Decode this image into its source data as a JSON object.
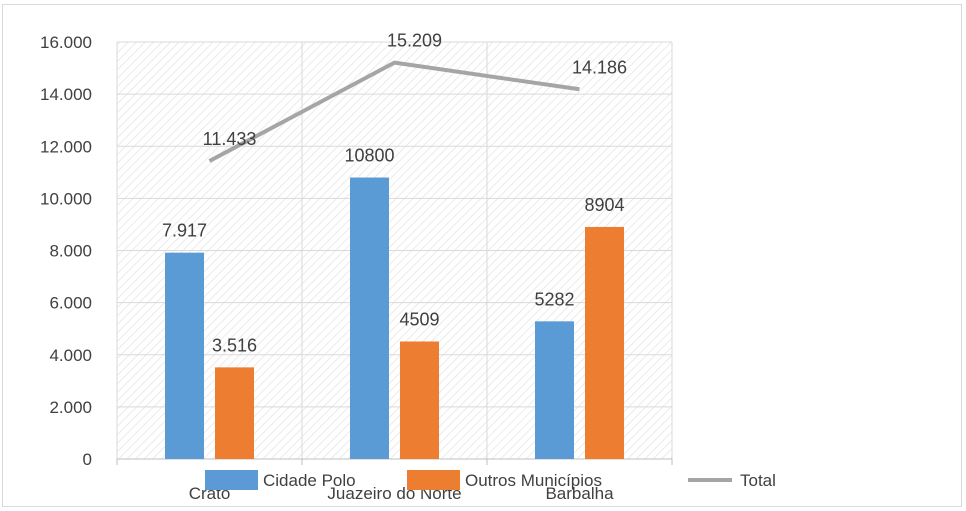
{
  "chart_data": {
    "type": "bar",
    "categories": [
      "Crato",
      "Juazeiro do Norte",
      "Barbalha"
    ],
    "series": [
      {
        "name": "Cidade Polo",
        "type": "bar",
        "color": "#5b9bd5",
        "values": [
          7917,
          10800,
          5282
        ],
        "labels": [
          "7.917",
          "10800",
          "5282"
        ]
      },
      {
        "name": "Outros Municípios",
        "type": "bar",
        "color": "#ed7d31",
        "values": [
          3516,
          4509,
          8904
        ],
        "labels": [
          "3.516",
          "4509",
          "8904"
        ]
      },
      {
        "name": "Total",
        "type": "line",
        "color": "#a5a5a5",
        "values": [
          11433,
          15209,
          14186
        ],
        "labels": [
          "11.433",
          "15.209",
          "14.186"
        ]
      }
    ],
    "ylim": [
      0,
      16000
    ],
    "yticks": [
      0,
      2000,
      4000,
      6000,
      8000,
      10000,
      12000,
      14000,
      16000
    ],
    "ytick_labels": [
      "0",
      "2.000",
      "4.000",
      "6.000",
      "8.000",
      "10.000",
      "12.000",
      "14.000",
      "16.000"
    ],
    "grid": true,
    "legend": "bottom"
  }
}
